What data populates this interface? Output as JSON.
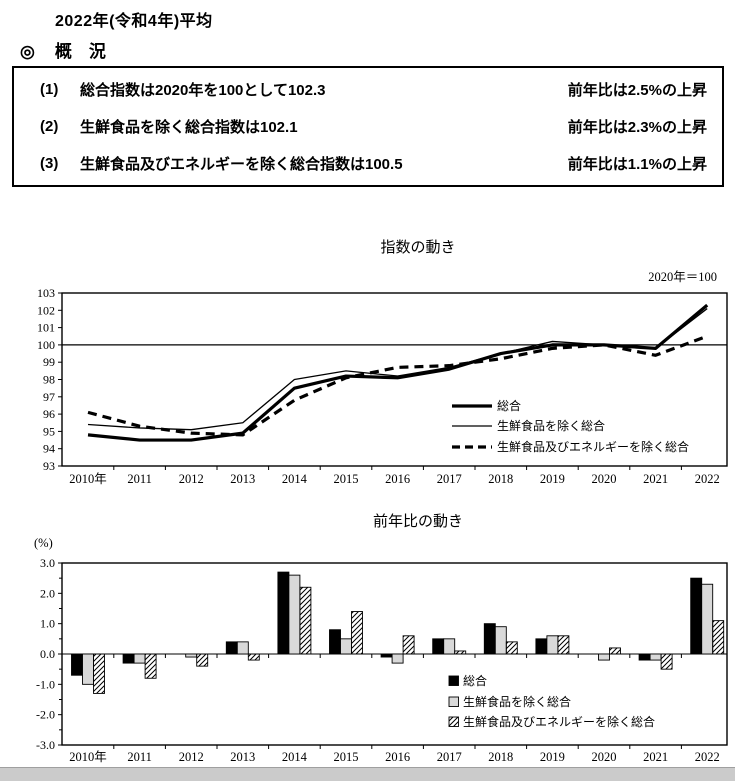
{
  "page": {
    "title": "2022年(令和4年)平均",
    "section_marker": "◎",
    "section_title": "概　況"
  },
  "overview": {
    "items": [
      {
        "no": "(1)",
        "text": "総合指数は2020年を100として102.3",
        "yoy": "前年比は2.5%の上昇"
      },
      {
        "no": "(2)",
        "text": "生鮮食品を除く総合指数は102.1",
        "yoy": "前年比は2.3%の上昇"
      },
      {
        "no": "(3)",
        "text": "生鮮食品及びエネルギーを除く総合指数は100.5",
        "yoy": "前年比は1.1%の上昇"
      }
    ]
  },
  "chart_data": [
    {
      "type": "line",
      "title": "指数の動き",
      "note": "2020年＝100",
      "categories": [
        "2010年",
        "2011",
        "2012",
        "2013",
        "2014",
        "2015",
        "2016",
        "2017",
        "2018",
        "2019",
        "2020",
        "2021",
        "2022"
      ],
      "ylim": [
        93,
        103
      ],
      "ytick_step": 1,
      "reference_line": 100,
      "grid": false,
      "legend_position": "inside-bottom-right",
      "series": [
        {
          "name": "総合",
          "style": "thick-solid",
          "values": [
            94.8,
            94.5,
            94.5,
            94.9,
            97.5,
            98.2,
            98.1,
            98.6,
            99.5,
            100.0,
            100.0,
            99.8,
            102.3
          ]
        },
        {
          "name": "生鮮食品を除く総合",
          "style": "thin-solid",
          "values": [
            95.4,
            95.2,
            95.1,
            95.5,
            98.0,
            98.5,
            98.2,
            98.7,
            99.5,
            100.2,
            100.0,
            99.8,
            102.1
          ]
        },
        {
          "name": "生鮮食品及びエネルギーを除く総合",
          "style": "thick-dashed",
          "values": [
            96.1,
            95.3,
            94.9,
            94.8,
            96.8,
            98.1,
            98.7,
            98.8,
            99.2,
            99.8,
            100.0,
            99.4,
            100.5
          ]
        }
      ]
    },
    {
      "type": "bar",
      "title": "前年比の動き",
      "unit": "(%)",
      "categories": [
        "2010年",
        "2011",
        "2012",
        "2013",
        "2014",
        "2015",
        "2016",
        "2017",
        "2018",
        "2019",
        "2020",
        "2021",
        "2022"
      ],
      "ylim": [
        -3.0,
        3.0
      ],
      "ytick_step": 1.0,
      "grid": false,
      "legend_position": "inside-bottom-right",
      "series": [
        {
          "name": "総合",
          "style": "black",
          "values": [
            -0.7,
            -0.3,
            0.0,
            0.4,
            2.7,
            0.8,
            -0.1,
            0.5,
            1.0,
            0.5,
            0.0,
            -0.2,
            2.5
          ]
        },
        {
          "name": "生鮮食品を除く総合",
          "style": "gray",
          "values": [
            -1.0,
            -0.3,
            -0.1,
            0.4,
            2.6,
            0.5,
            -0.3,
            0.5,
            0.9,
            0.6,
            -0.2,
            -0.2,
            2.3
          ]
        },
        {
          "name": "生鮮食品及びエネルギーを除く総合",
          "style": "hatched",
          "values": [
            -1.3,
            -0.8,
            -0.4,
            -0.2,
            2.2,
            1.4,
            0.6,
            0.1,
            0.4,
            0.6,
            0.2,
            -0.5,
            1.1
          ]
        }
      ]
    }
  ],
  "colors": {
    "ink": "#000000",
    "bar_gray": "#d9d9d9",
    "scrollbar": "#cbcbcb"
  }
}
